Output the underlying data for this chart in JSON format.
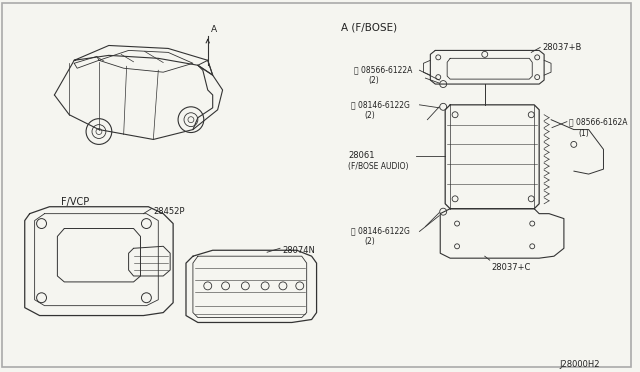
{
  "background_color": "#f5f5f0",
  "border_color": "#aaaaaa",
  "line_color": "#333333",
  "text_color": "#222222",
  "fig_width": 6.4,
  "fig_height": 3.72,
  "labels": {
    "section_a": "A (F/BOSE)",
    "section_fvcp": "F/VCP",
    "part_28037b": "28037+B",
    "part_28037c": "28037+C",
    "part_28061_line1": "28061",
    "part_28061_line2": "(F/BOSE AUDIO)",
    "part_08566_6122a_line1": "Ⓢ 08566-6122A",
    "part_08566_6122a_line2": "(2)",
    "part_08146_6122g_top_line1": "Ⓢ 08146-6122G",
    "part_08146_6122g_top_line2": "(2)",
    "part_08566_6162a_line1": "Ⓢ 08566-6162A",
    "part_08566_6162a_line2": "(1)",
    "part_08146_6122g_bot_line1": "Ⓢ 08146-6122G",
    "part_08146_6122g_bot_line2": "(2)",
    "part_28452p": "28452P",
    "part_28074n": "28074N",
    "arrow_a": "A",
    "diagram_id": "J28000H2"
  }
}
